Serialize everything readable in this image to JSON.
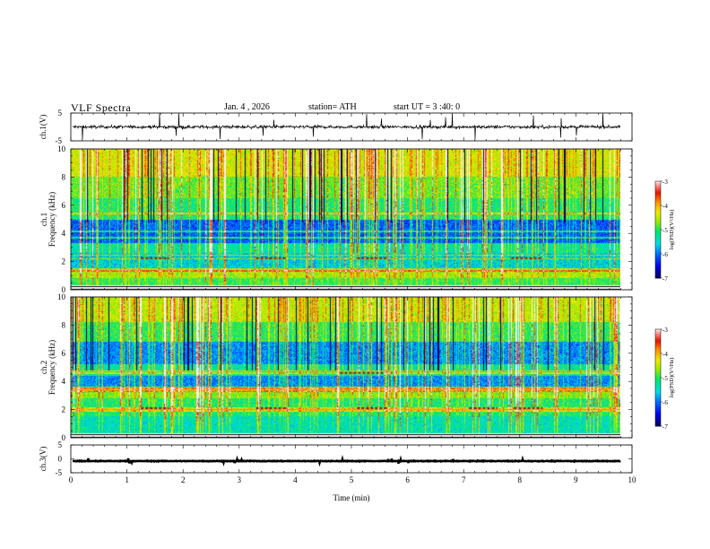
{
  "header": {
    "title": "VLF  Spectra",
    "date": "Jan. 4 , 2026",
    "station": "station= ATH",
    "start_ut": "start  UT =   3 :40: 0"
  },
  "chart_data": [
    {
      "type": "line",
      "name": "ch1-waveform",
      "ylabel": "ch.1(V)",
      "ylim": [
        -5,
        5
      ],
      "yticks": [
        "5",
        "-5"
      ],
      "xlim": [
        0,
        10
      ],
      "x_extent": [
        0,
        9.8
      ],
      "baseline": 0.0,
      "noise_amplitude": 1.3,
      "line_color": "#000000"
    },
    {
      "type": "heatmap",
      "name": "ch1-spectrogram",
      "ylabel": [
        "ch.1",
        "Frequency  (kHz)"
      ],
      "ylim": [
        0,
        10
      ],
      "yticks": [
        "0",
        "2",
        "4",
        "6",
        "8",
        "10"
      ],
      "xlim": [
        0,
        10
      ],
      "x_extent": [
        0,
        9.8
      ],
      "colorbar": {
        "label": "log(PSD)(V²/Hz)",
        "range": [
          -7,
          -3
        ],
        "ticks": [
          "-3",
          "-4",
          "-5",
          "-6",
          "-7"
        ]
      },
      "bands": [
        {
          "f": [
            0,
            0.3
          ],
          "level": -7.2
        },
        {
          "f": [
            0.3,
            0.8
          ],
          "level": -5.0
        },
        {
          "f": [
            0.8,
            1.5
          ],
          "level": -4.6
        },
        {
          "f": [
            1.5,
            2.6
          ],
          "level": -5.6
        },
        {
          "f": [
            2.6,
            3.3
          ],
          "level": -5.3
        },
        {
          "f": [
            3.3,
            5.0
          ],
          "level": -6.1
        },
        {
          "f": [
            5.0,
            6.5
          ],
          "level": -5.1
        },
        {
          "f": [
            6.5,
            8.0
          ],
          "level": -4.8
        },
        {
          "f": [
            8.0,
            10.0
          ],
          "level": -4.4
        }
      ],
      "tone_lines_khz": [
        1.35,
        2.2,
        2.45,
        3.7,
        4.15,
        5.4
      ],
      "dashed_segments": [
        {
          "f": 2.25,
          "t": [
            1.25,
            1.75
          ]
        },
        {
          "f": 2.25,
          "t": [
            3.3,
            3.85
          ]
        },
        {
          "f": 2.25,
          "t": [
            5.1,
            5.65
          ]
        },
        {
          "f": 2.25,
          "t": [
            7.85,
            8.4
          ]
        }
      ]
    },
    {
      "type": "heatmap",
      "name": "ch2-spectrogram",
      "ylabel": [
        "ch.2",
        "Frequency  (kHz)"
      ],
      "ylim": [
        0,
        10
      ],
      "yticks": [
        "0",
        "2",
        "4",
        "6",
        "8",
        "10"
      ],
      "xlim": [
        0,
        10
      ],
      "x_extent": [
        0,
        9.8
      ],
      "colorbar": {
        "label": "log(PSD)(V²/Hz)",
        "range": [
          -7,
          -3
        ],
        "ticks": [
          "-3",
          "-4",
          "-5",
          "-6",
          "-7"
        ]
      },
      "bands": [
        {
          "f": [
            0,
            0.3
          ],
          "level": -7.2
        },
        {
          "f": [
            0.3,
            1.5
          ],
          "level": -5.4
        },
        {
          "f": [
            1.5,
            2.8
          ],
          "level": -5.1
        },
        {
          "f": [
            2.8,
            3.6
          ],
          "level": -4.7
        },
        {
          "f": [
            3.6,
            4.4
          ],
          "level": -5.9
        },
        {
          "f": [
            4.4,
            5.2
          ],
          "level": -5.3
        },
        {
          "f": [
            5.2,
            6.8
          ],
          "level": -5.9
        },
        {
          "f": [
            6.8,
            8.2
          ],
          "level": -5.0
        },
        {
          "f": [
            8.2,
            10.0
          ],
          "level": -4.5
        }
      ],
      "tone_lines_khz": [
        1.9,
        2.1,
        3.3,
        3.5,
        4.6,
        4.75
      ],
      "dashed_segments": [
        {
          "f": 2.1,
          "t": [
            1.25,
            1.75
          ]
        },
        {
          "f": 2.1,
          "t": [
            3.3,
            3.85
          ]
        },
        {
          "f": 2.1,
          "t": [
            5.1,
            5.65
          ]
        },
        {
          "f": 2.1,
          "t": [
            7.1,
            7.6
          ]
        },
        {
          "f": 2.1,
          "t": [
            7.9,
            8.4
          ]
        },
        {
          "f": 4.6,
          "t": [
            4.8,
            5.6
          ]
        }
      ]
    },
    {
      "type": "line",
      "name": "ch3-waveform",
      "ylabel": "ch.3(V)",
      "ylim": [
        -5,
        5
      ],
      "yticks": [
        "5",
        "0",
        "-5"
      ],
      "xlim": [
        0,
        10
      ],
      "x_extent": [
        0,
        9.8
      ],
      "baseline": -0.8,
      "noise_amplitude": 0.25,
      "line_color": "#000000"
    }
  ],
  "x_axis": {
    "label": "Time  (min)",
    "ticks": [
      "0",
      "1",
      "2",
      "3",
      "4",
      "5",
      "6",
      "7",
      "8",
      "9",
      "10"
    ]
  }
}
